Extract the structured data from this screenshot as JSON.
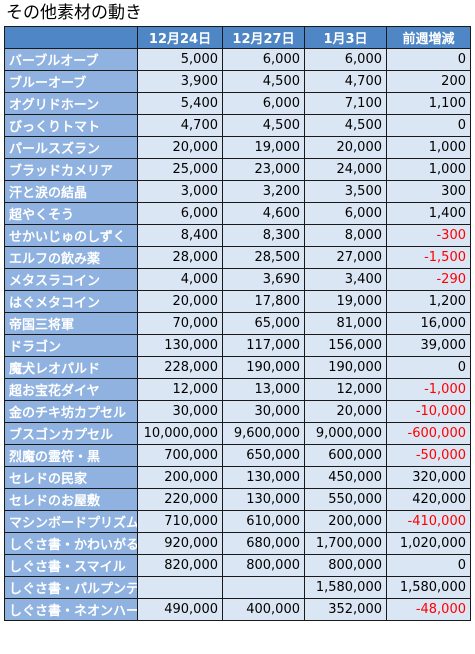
{
  "title": "その他素材の動き",
  "headers": [
    "",
    "12月24日",
    "12月27日",
    "1月3日",
    "前週増減"
  ],
  "rows": [
    {
      "name": "バーブルオーブ",
      "d1": "5,000",
      "d2": "6,000",
      "d3": "6,000",
      "change": "0"
    },
    {
      "name": "ブルーオーブ",
      "d1": "3,900",
      "d2": "4,500",
      "d3": "4,700",
      "change": "200"
    },
    {
      "name": "オグリドホーン",
      "d1": "5,400",
      "d2": "6,000",
      "d3": "7,100",
      "change": "1,100"
    },
    {
      "name": "びっくりトマト",
      "d1": "4,700",
      "d2": "4,500",
      "d3": "4,500",
      "change": "0"
    },
    {
      "name": "パールスズラン",
      "d1": "20,000",
      "d2": "19,000",
      "d3": "20,000",
      "change": "1,000"
    },
    {
      "name": "ブラッドカメリア",
      "d1": "25,000",
      "d2": "23,000",
      "d3": "24,000",
      "change": "1,000"
    },
    {
      "name": "汗と涙の結晶",
      "d1": "3,000",
      "d2": "3,200",
      "d3": "3,500",
      "change": "300"
    },
    {
      "name": "超やくそう",
      "d1": "6,000",
      "d2": "4,600",
      "d3": "6,000",
      "change": "1,400"
    },
    {
      "name": "せかいじゅのしずく",
      "d1": "8,400",
      "d2": "8,300",
      "d3": "8,000",
      "change": "-300"
    },
    {
      "name": "エルフの飲み薬",
      "d1": "28,000",
      "d2": "28,500",
      "d3": "27,000",
      "change": "-1,500"
    },
    {
      "name": "メタスラコイン",
      "d1": "4,000",
      "d2": "3,690",
      "d3": "3,400",
      "change": "-290"
    },
    {
      "name": "はぐメタコイン",
      "d1": "20,000",
      "d2": "17,800",
      "d3": "19,000",
      "change": "1,200"
    },
    {
      "name": "帝国三将軍",
      "d1": "70,000",
      "d2": "65,000",
      "d3": "81,000",
      "change": "16,000"
    },
    {
      "name": "ドラゴン",
      "d1": "130,000",
      "d2": "117,000",
      "d3": "156,000",
      "change": "39,000"
    },
    {
      "name": "魔犬レオパルド",
      "d1": "228,000",
      "d2": "190,000",
      "d3": "190,000",
      "change": "0"
    },
    {
      "name": "超お宝花ダイヤ",
      "d1": "12,000",
      "d2": "13,000",
      "d3": "12,000",
      "change": "-1,000"
    },
    {
      "name": "金のチキ坊カプセル",
      "d1": "30,000",
      "d2": "30,000",
      "d3": "20,000",
      "change": "-10,000"
    },
    {
      "name": "ブスゴンカプセル",
      "d1": "10,000,000",
      "d2": "9,600,000",
      "d3": "9,000,000",
      "change": "-600,000"
    },
    {
      "name": "烈魔の霊符・黒",
      "d1": "700,000",
      "d2": "650,000",
      "d3": "600,000",
      "change": "-50,000"
    },
    {
      "name": "セレドの民家",
      "d1": "200,000",
      "d2": "130,000",
      "d3": "450,000",
      "change": "320,000"
    },
    {
      "name": "セレドのお屋敷",
      "d1": "220,000",
      "d2": "130,000",
      "d3": "550,000",
      "change": "420,000"
    },
    {
      "name": "マシンボードプリズム",
      "d1": "710,000",
      "d2": "610,000",
      "d3": "200,000",
      "change": "-410,000"
    },
    {
      "name": "しぐさ書・かわいがる",
      "d1": "920,000",
      "d2": "680,000",
      "d3": "1,700,000",
      "change": "1,020,000"
    },
    {
      "name": "しぐさ書・スマイル",
      "d1": "820,000",
      "d2": "800,000",
      "d3": "800,000",
      "change": "0"
    },
    {
      "name": "しぐさ書・パルプンテ",
      "d1": "",
      "d2": "",
      "d3": "1,580,000",
      "change": "1,580,000"
    },
    {
      "name": "しぐさ書・ネオンハート",
      "d1": "490,000",
      "d2": "400,000",
      "d3": "352,000",
      "change": "-48,000"
    }
  ]
}
